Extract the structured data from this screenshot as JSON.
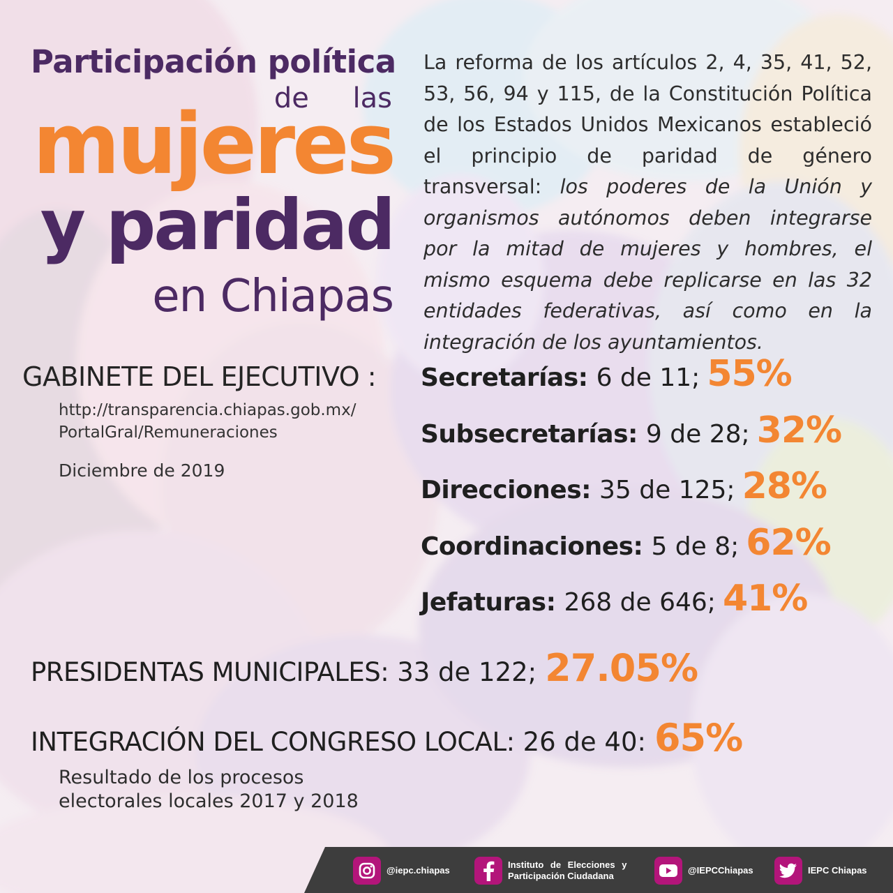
{
  "colors": {
    "accent_orange": "#f38632",
    "title_purple": "#4c2a63",
    "social_magenta": "#b3157a",
    "footer_band": "#3d3d3d"
  },
  "title": {
    "line1": "Participación política",
    "line2": "de las",
    "line3": "mujeres",
    "line4": "y paridad",
    "line5": "en Chiapas"
  },
  "intro": {
    "regular": "La reforma de los artículos 2, 4, 35, 41, 52, 53, 56, 94 y 115, de la Constitución Política de los Estados Unidos Mexicanos estableció el principio de paridad de género transversal:",
    "italic": "los poderes de la Unión y organismos autónomos deben integrarse por la mitad de mujeres y hombres, el mismo esquema debe replicarse en las 32 entidades federativas, así como en la integración de los ayuntamientos."
  },
  "gabinete": {
    "heading": "GABINETE DEL EJECUTIVO :",
    "url_line1": "http://transparencia.chiapas.gob.mx/",
    "url_line2": "PortalGral/Remuneraciones",
    "date": "Diciembre de 2019"
  },
  "stats": [
    {
      "label": "Secretarías:",
      "value": "6 de 11;",
      "percent": "55%"
    },
    {
      "label": "Subsecretarías:",
      "value": "9 de 28;",
      "percent": "32%"
    },
    {
      "label": "Direcciones:",
      "value": "35 de 125;",
      "percent": "28%"
    },
    {
      "label": "Coordinaciones:",
      "value": "5 de 8;",
      "percent": "62%"
    },
    {
      "label": "Jefaturas:",
      "value": "268 de 646;",
      "percent": "41%"
    }
  ],
  "presidentas": {
    "label": "PRESIDENTAS MUNICIPALES:",
    "value": "33 de 122;",
    "percent": "27.05%"
  },
  "congreso": {
    "label": "INTEGRACIÓN DEL CONGRESO LOCAL:",
    "value": "26 de 40:",
    "percent": "65%"
  },
  "note": {
    "line1": "Resultado de los procesos",
    "line2": "electorales locales 2017 y 2018"
  },
  "social": [
    {
      "icon": "instagram-icon",
      "line1": "@iepc.chiapas",
      "line2": ""
    },
    {
      "icon": "facebook-icon",
      "line1": "Instituto de Elecciones y",
      "line2": "Participación Ciudadana"
    },
    {
      "icon": "youtube-icon",
      "line1": "@IEPCChiapas",
      "line2": ""
    },
    {
      "icon": "twitter-icon",
      "line1": "IEPC Chiapas",
      "line2": ""
    }
  ]
}
